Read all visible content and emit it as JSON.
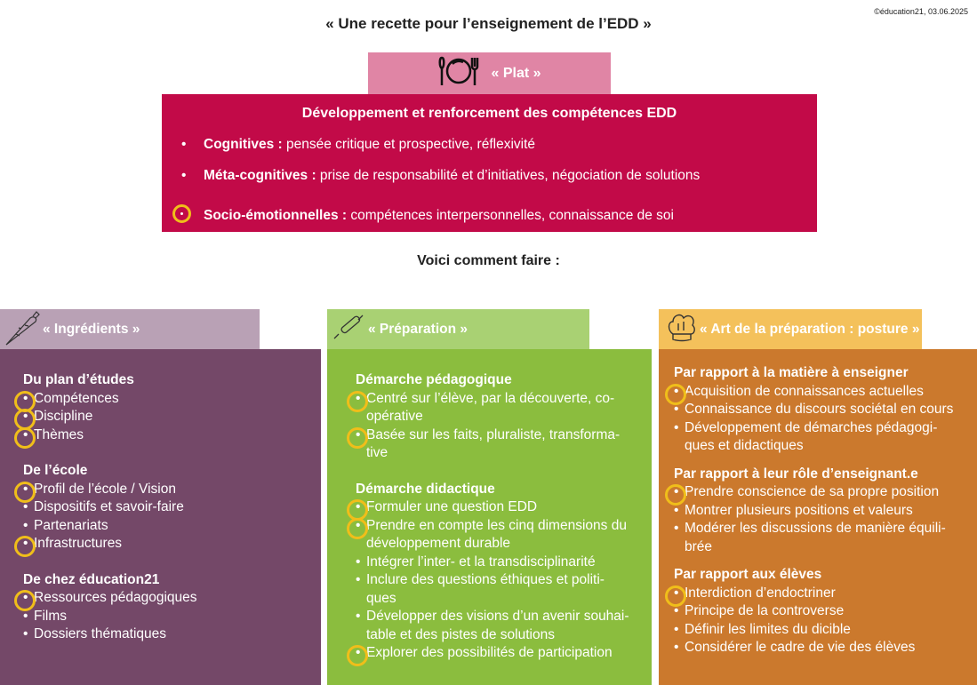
{
  "title": "« Une recette pour l’enseignement de l’EDD »",
  "copyright": "©éducation21, 03.06.2025",
  "plat": {
    "label": "« Plat »",
    "icon": "plate-cutlery-icon",
    "heading": "Développement et renforcement des compétences EDD",
    "items": [
      {
        "bold": "Cognitives :",
        "text": " pensée critique et prospective, réflexivité",
        "highlight": false
      },
      {
        "bold": "Méta-cognitives :",
        "text": " prise de responsabilité et d’initiatives, négociation de solutions",
        "highlight": false
      },
      {
        "bold": "Socio-émotionnelles :",
        "text": " compétences interpersonnelles, connaissance de soi",
        "highlight": true
      }
    ]
  },
  "voici": "Voici comment faire :",
  "colors": {
    "plat_header": "#e085a5",
    "plat_body": "#c20a48",
    "ingredients_header": "#b9a1b5",
    "ingredients_body": "#744868",
    "preparation_header": "#a9d173",
    "preparation_body": "#8bbd3e",
    "posture_header": "#f4c15b",
    "posture_body": "#cb792d",
    "highlight_ring": "#f0be1a"
  },
  "columns": [
    {
      "label": "« Ingrédients »",
      "icon": "carrot-icon",
      "groups": [
        {
          "heading": "Du plan d’études",
          "items": [
            {
              "text": "Compétences",
              "highlight": true
            },
            {
              "text": "Discipline",
              "highlight": true
            },
            {
              "text": "Thèmes",
              "highlight": true
            }
          ]
        },
        {
          "heading": "De l’école",
          "items": [
            {
              "text": "Profil de l’école / Vision",
              "highlight": true
            },
            {
              "text": "Dispositifs et savoir-faire",
              "highlight": false
            },
            {
              "text": "Partenariats",
              "highlight": false
            },
            {
              "text": "Infrastructures",
              "highlight": true
            }
          ]
        },
        {
          "heading": "De chez éducation21",
          "items": [
            {
              "text": "Ressources pédagogiques",
              "highlight": true
            },
            {
              "text": "Films",
              "highlight": false
            },
            {
              "text": "Dossiers thématiques",
              "highlight": false
            }
          ]
        }
      ]
    },
    {
      "label": "« Préparation »",
      "icon": "rolling-pin-icon",
      "groups": [
        {
          "heading": "Démarche pédagogique",
          "items": [
            {
              "text": "Centré sur l’élève, par la découverte, co-opérative",
              "highlight": true
            },
            {
              "text": "Basée sur les faits, pluraliste, transforma-tive",
              "highlight": true
            }
          ]
        },
        {
          "heading": "Démarche didactique",
          "items": [
            {
              "text": "Formuler une question EDD",
              "highlight": true
            },
            {
              "text": "Prendre en compte les cinq dimensions du développement durable",
              "highlight": true
            },
            {
              "text": "Intégrer l’inter- et la transdisciplinarité",
              "highlight": false
            },
            {
              "text": "Inclure des questions éthiques et politi-ques",
              "highlight": false
            },
            {
              "text": "Développer des visions d’un avenir souhai-table et des pistes de solutions",
              "highlight": false
            },
            {
              "text": "Explorer des possibilités de participation",
              "highlight": true
            }
          ]
        }
      ]
    },
    {
      "label": "« Art de la préparation : posture »",
      "icon": "chef-hat-icon",
      "groups": [
        {
          "heading": "Par rapport à la matière à enseigner",
          "items": [
            {
              "text": "Acquisition de connaissances actuelles",
              "highlight": true
            },
            {
              "text": "Connaissance du discours sociétal en cours",
              "highlight": false
            },
            {
              "text": "Développement de démarches pédagogi-ques et didactiques",
              "highlight": false
            }
          ]
        },
        {
          "heading": "Par rapport à leur rôle d’enseignant.e",
          "items": [
            {
              "text": "Prendre conscience de sa propre position",
              "highlight": true
            },
            {
              "text": "Montrer plusieurs positions et valeurs",
              "highlight": false
            },
            {
              "text": "Modérer les discussions de manière équili-brée",
              "highlight": false
            }
          ]
        },
        {
          "heading": "Par rapport aux élèves",
          "items": [
            {
              "text": "Interdiction d’endoctriner",
              "highlight": true
            },
            {
              "text": "Principe de la controverse",
              "highlight": false
            },
            {
              "text": "Définir les limites du dicible",
              "highlight": false
            },
            {
              "text": "Considérer le cadre de vie des élèves",
              "highlight": false
            }
          ]
        }
      ]
    }
  ]
}
